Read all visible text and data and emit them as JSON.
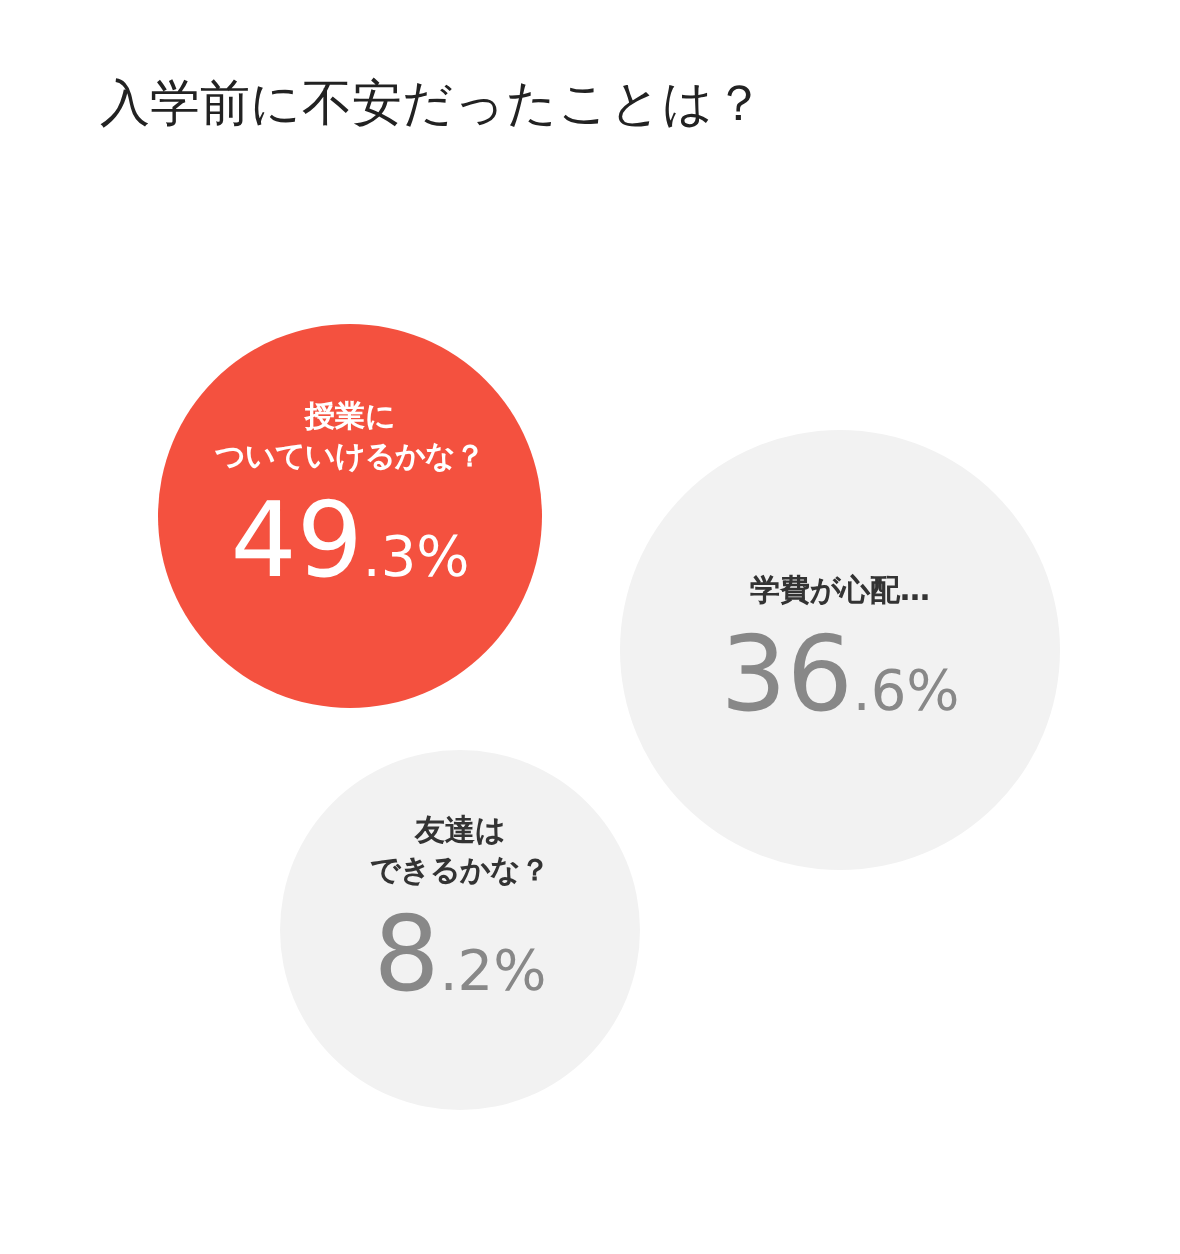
{
  "chart_data": {
    "type": "other",
    "title": "入学前に不安だったことは？",
    "categories": [
      "授業についていけるかな？",
      "学費が心配…",
      "友達はできるかな？"
    ],
    "values": [
      49.3,
      36.6,
      8.2
    ],
    "value_labels": [
      "49.3%",
      "36.6%",
      "8.2%"
    ],
    "colors": [
      "#f4513f",
      "#f2f2f2",
      "#f2f2f2"
    ]
  }
}
